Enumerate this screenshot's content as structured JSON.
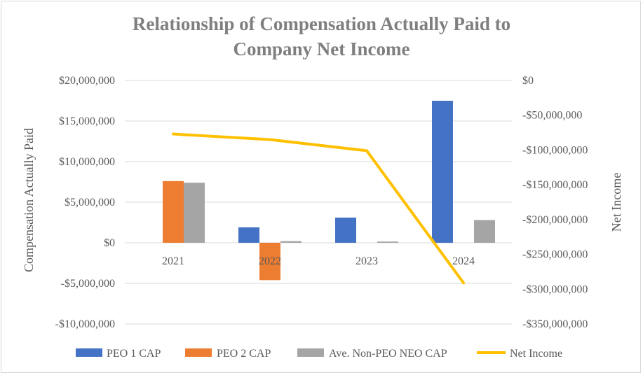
{
  "chart_data": {
    "type": "bar",
    "title_lines": [
      "Relationship of Compensation Actually Paid to",
      "Company Net Income"
    ],
    "categories": [
      "2021",
      "2022",
      "2023",
      "2024"
    ],
    "series": [
      {
        "name": "PEO 1 CAP",
        "kind": "bar",
        "axis": "left",
        "color": "#4472c4",
        "values": [
          null,
          1900000,
          3100000,
          17500000
        ]
      },
      {
        "name": "PEO 2 CAP",
        "kind": "bar",
        "axis": "left",
        "color": "#ed7d31",
        "values": [
          7600000,
          -4600000,
          null,
          null
        ]
      },
      {
        "name": "Ave. Non-PEO NEO CAP",
        "kind": "bar",
        "axis": "left",
        "color": "#a5a5a5",
        "values": [
          7400000,
          200000,
          150000,
          2800000
        ]
      },
      {
        "name": "Net Income",
        "kind": "line",
        "axis": "right",
        "color": "#ffc000",
        "values": [
          -77000000,
          -85000000,
          -101000000,
          -291000000
        ]
      }
    ],
    "ylabel": "Compensation Actually Paid",
    "ylabel_right": "Net Income",
    "ylim": [
      -10000000,
      20000000
    ],
    "ylim_right": [
      -350000000,
      0
    ],
    "yticks": [
      20000000,
      15000000,
      10000000,
      5000000,
      0,
      -5000000,
      -10000000
    ],
    "ytick_labels": [
      "$20,000,000",
      "$15,000,000",
      "$10,000,000",
      "$5,000,000",
      "$0",
      "-$5,000,000",
      "-$10,000,000"
    ],
    "yticks_right": [
      0,
      -50000000,
      -100000000,
      -150000000,
      -200000000,
      -250000000,
      -300000000,
      -350000000
    ],
    "ytick_labels_right": [
      "$0",
      "-$50,000,000",
      "-$100,000,000",
      "-$150,000,000",
      "-$200,000,000",
      "-$250,000,000",
      "-$300,000,000",
      "-$350,000,000"
    ],
    "grid": true,
    "legend_position": "bottom"
  }
}
